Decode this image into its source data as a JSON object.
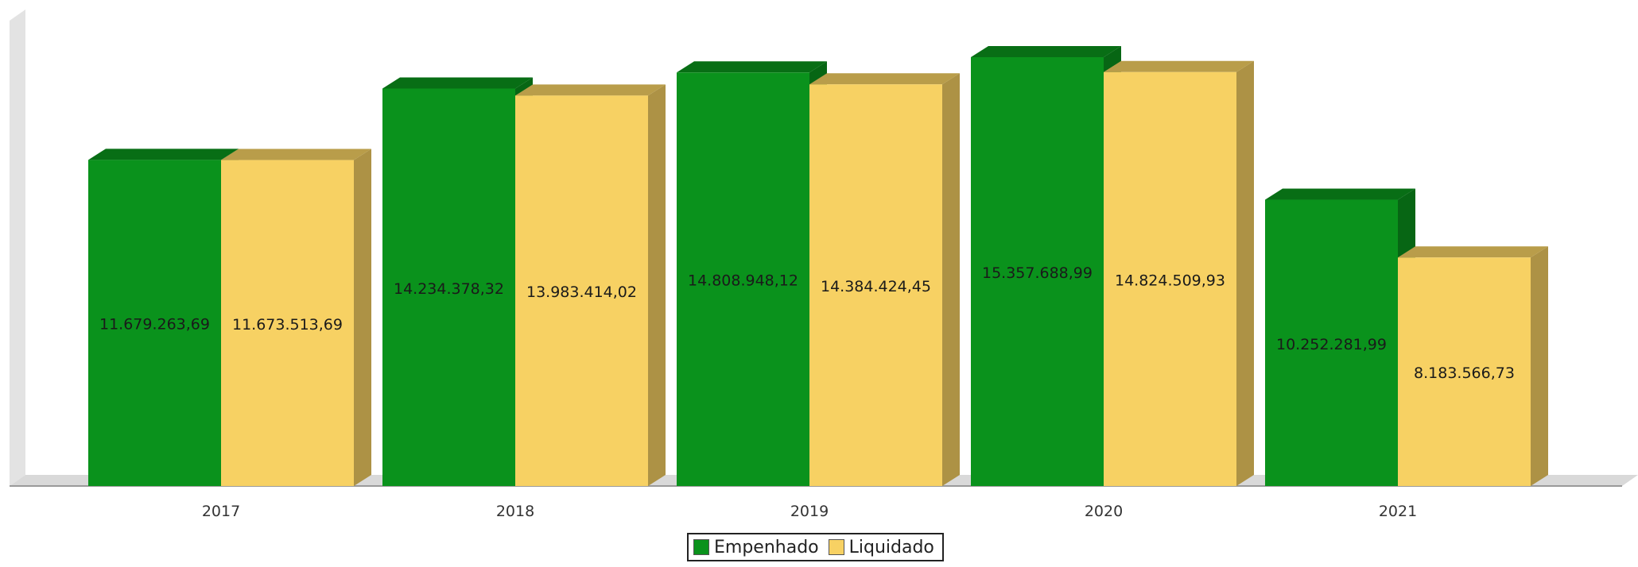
{
  "chart_data": {
    "type": "bar",
    "title": "",
    "xlabel": "",
    "ylabel": "",
    "categories": [
      "2017",
      "2018",
      "2019",
      "2020",
      "2021"
    ],
    "series": [
      {
        "name": "Empenhado",
        "color": "#0a921c",
        "values": [
          11679263.69,
          14234378.32,
          14808948.12,
          15357688.99,
          10252281.99
        ],
        "labels": [
          "11.679.263,69",
          "14.234.378,32",
          "14.808.948,12",
          "15.357.688,99",
          "10.252.281,99"
        ]
      },
      {
        "name": "Liquidado",
        "color": "#f7d163",
        "values": [
          11673513.69,
          13983414.02,
          14384424.45,
          14824509.93,
          8183566.73
        ],
        "labels": [
          "11.673.513,69",
          "13.983.414,02",
          "14.384.424,45",
          "14.824.509,93",
          "8.183.566,73"
        ]
      }
    ],
    "ylim": [
      0,
      15500000
    ],
    "grid": false,
    "legend_position": "bottom",
    "style": "3d"
  }
}
